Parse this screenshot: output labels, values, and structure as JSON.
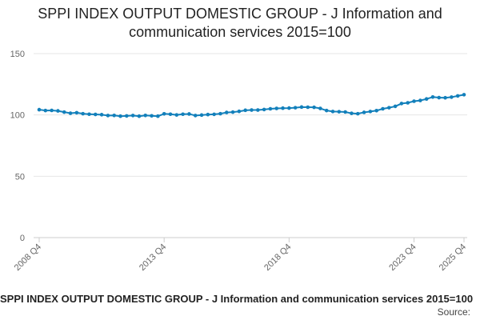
{
  "chart_data": {
    "type": "line",
    "title_line1": "SPPI INDEX OUTPUT DOMESTIC GROUP - J Information and",
    "title_line2": "communication services 2015=100",
    "xlabel": "",
    "ylabel": "",
    "ylim": [
      0,
      150
    ],
    "yticks": [
      0,
      50,
      100,
      150
    ],
    "x_tick_labels": [
      {
        "label": "2008 Q4",
        "index": 0
      },
      {
        "label": "2013 Q4",
        "index": 20
      },
      {
        "label": "2018 Q4",
        "index": 40
      },
      {
        "label": "2023 Q4",
        "index": 60
      },
      {
        "label": "2025 Q4",
        "index": 68
      }
    ],
    "grid": "horizontal",
    "legend": "none",
    "colors": {
      "line": "#1380bb",
      "grid": "#e6e6e6",
      "axis": "#cccccc"
    },
    "series": [
      {
        "values": [
          104.3,
          103.6,
          103.7,
          103.3,
          102.3,
          101.4,
          101.8,
          101.0,
          100.6,
          100.4,
          100.2,
          99.5,
          99.6,
          99.0,
          99.2,
          99.5,
          99.0,
          99.6,
          99.3,
          99.0,
          100.9,
          100.6,
          100.0,
          100.6,
          100.8,
          99.5,
          99.9,
          100.3,
          100.5,
          101.0,
          102.0,
          102.3,
          102.9,
          103.8,
          104.0,
          104.0,
          104.4,
          105.0,
          105.3,
          105.5,
          105.6,
          105.9,
          106.4,
          106.3,
          106.2,
          105.3,
          103.6,
          102.8,
          102.6,
          102.4,
          101.3,
          101.0,
          102.1,
          102.8,
          103.5,
          105.0,
          105.9,
          107.0,
          109.3,
          109.9,
          111.2,
          111.8,
          113.0,
          114.6,
          114.1,
          114.0,
          114.5,
          115.5,
          116.5
        ]
      }
    ]
  },
  "footer": {
    "series_title": "SPPI INDEX OUTPUT DOMESTIC GROUP - J Information and communication services 2015=100",
    "source_label": "Source:"
  }
}
